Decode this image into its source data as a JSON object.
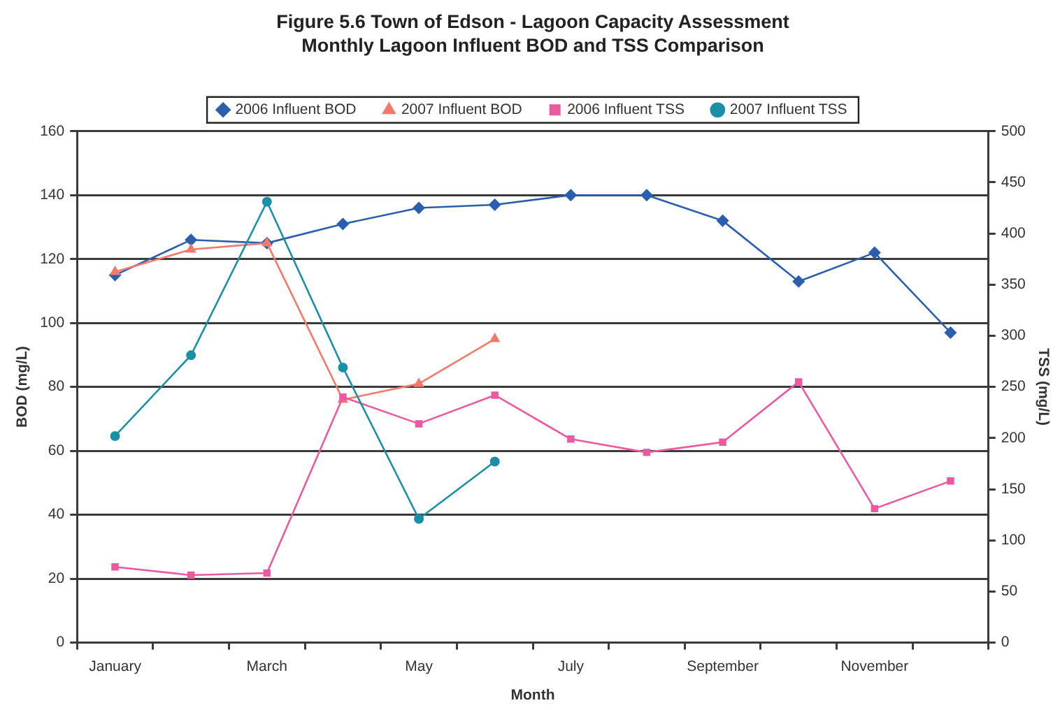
{
  "chart_data": {
    "type": "line",
    "title": "Figure 5.6 Town of Edson - Lagoon Capacity Assessment",
    "subtitle": "Monthly Lagoon Influent BOD and TSS Comparison",
    "xlabel": "Month",
    "ylabel": "BOD (mg/L)",
    "y2label": "TSS (mg/L)",
    "categories": [
      "January",
      null,
      "March",
      null,
      "May",
      null,
      "July",
      null,
      "September",
      null,
      "November",
      null
    ],
    "series": [
      {
        "name": "2006 Influent BOD",
        "color": "#2b5fae",
        "marker": "diamond",
        "values": [
          115,
          126,
          125,
          131,
          136,
          137,
          140,
          140,
          132,
          113,
          122,
          97
        ]
      },
      {
        "name": "2007 Influent BOD",
        "color": "#f27a6a",
        "marker": "triangle",
        "values": [
          116,
          123,
          125,
          76,
          81,
          95,
          null,
          null,
          null,
          null,
          null,
          null
        ]
      },
      {
        "name": "2006 Influent TSS",
        "color": "#ea5aa0",
        "marker": "square",
        "axis": "y2",
        "values": [
          74,
          66,
          68,
          240,
          214,
          242,
          199,
          186,
          196,
          255,
          131,
          158
        ]
      },
      {
        "name": "2007 Influent TSS",
        "color": "#1a8fa6",
        "marker": "circle",
        "axis": "y2",
        "values": [
          202,
          281,
          431,
          269,
          121,
          177,
          null,
          null,
          null,
          null,
          null,
          null
        ]
      }
    ],
    "ylim": [
      0,
      160
    ],
    "yticks": [
      0,
      20,
      40,
      60,
      80,
      100,
      120,
      140,
      160
    ],
    "y2lim": [
      0,
      500
    ],
    "y2ticks": [
      0,
      50,
      100,
      150,
      200,
      250,
      300,
      350,
      400,
      450,
      500
    ],
    "grid": "y",
    "legend": "top"
  }
}
